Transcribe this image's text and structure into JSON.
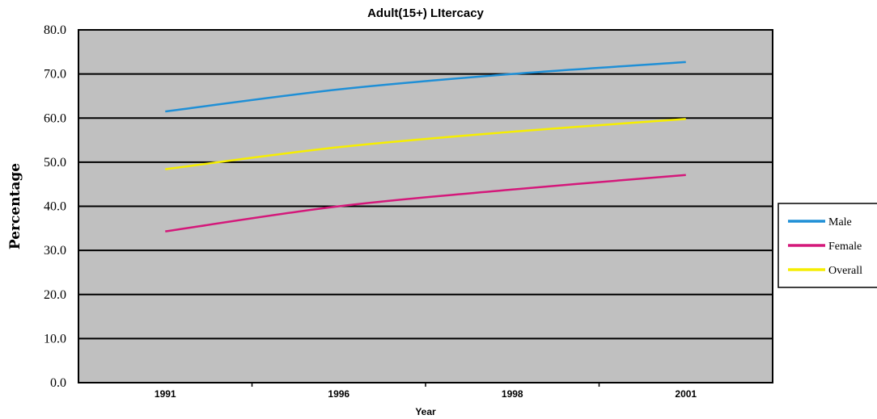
{
  "chart_data": {
    "type": "line",
    "title": "Adult(15+) LItercacy",
    "xlabel": "Year",
    "ylabel": "Percentage",
    "categories": [
      "1991",
      "1996",
      "1998",
      "2001"
    ],
    "ylim": [
      0,
      80
    ],
    "yticks": [
      "0.0",
      "10.0",
      "20.0",
      "30.0",
      "40.0",
      "50.0",
      "60.0",
      "70.0",
      "80.0"
    ],
    "grid": true,
    "legend": "right",
    "background": "#c0c0c0",
    "series": [
      {
        "name": "Male",
        "color": "#1f8fd6",
        "values": [
          61.5,
          66.5,
          70.0,
          72.7
        ]
      },
      {
        "name": "Female",
        "color": "#d4187a",
        "values": [
          34.3,
          40.0,
          43.8,
          47.1
        ]
      },
      {
        "name": "Overall",
        "color": "#f6ee00",
        "values": [
          48.4,
          53.4,
          56.9,
          59.8
        ]
      }
    ]
  }
}
